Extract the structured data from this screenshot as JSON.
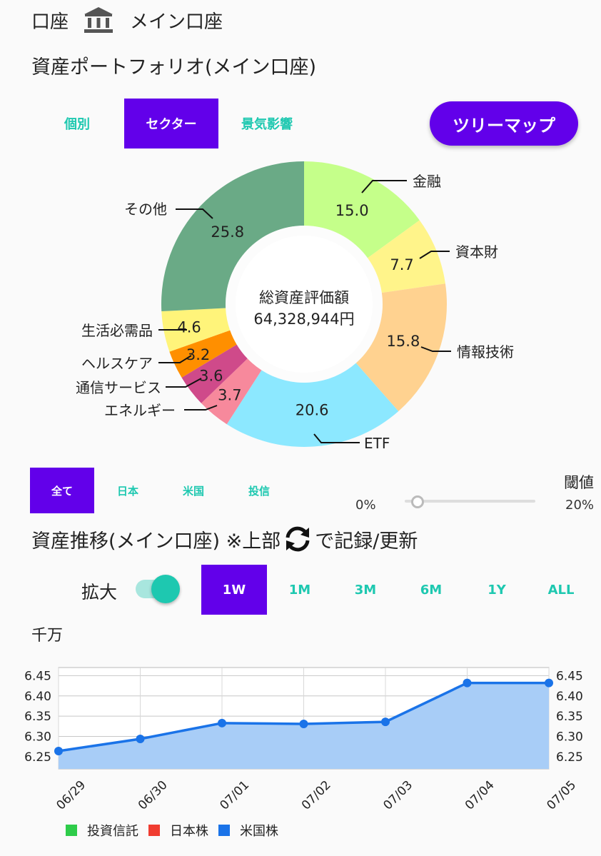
{
  "header": {
    "account_label": "口座",
    "account_name": "メイン口座",
    "icon": "bank-icon"
  },
  "portfolio": {
    "title": "資産ポートフォリオ(メイン口座)",
    "tabs": [
      {
        "label": "個別",
        "active": false
      },
      {
        "label": "セクター",
        "active": true
      },
      {
        "label": "景気影響",
        "active": false
      }
    ],
    "treemap_button": "ツリーマップ",
    "center_label": "総資産評価額",
    "center_value": "64,328,944円"
  },
  "chart_data": [
    {
      "type": "pie",
      "donut": true,
      "slices": [
        {
          "label": "金融",
          "value": 15.0,
          "color": "#c5ff8a"
        },
        {
          "label": "資本財",
          "value": 7.7,
          "color": "#fff48a"
        },
        {
          "label": "情報技術",
          "value": 15.8,
          "color": "#ffd290"
        },
        {
          "label": "ETF",
          "value": 20.6,
          "color": "#8ce8ff"
        },
        {
          "label": "エネルギー",
          "value": 3.7,
          "color": "#f7899c"
        },
        {
          "label": "通信サービス",
          "value": 3.6,
          "color": "#cf4a8a"
        },
        {
          "label": "ヘルスケア",
          "value": 3.2,
          "color": "#ff8f00"
        },
        {
          "label": "生活必需品",
          "value": 4.6,
          "color": "#fff47a"
        },
        {
          "label": "その他",
          "value": 25.8,
          "color": "#6aaa86"
        }
      ]
    },
    {
      "type": "area",
      "categories": [
        "06/29",
        "06/30",
        "07/01",
        "07/02",
        "07/03",
        "07/04",
        "07/05"
      ],
      "series": [
        {
          "values": [
            6.264,
            6.294,
            6.333,
            6.331,
            6.336,
            6.432,
            6.432
          ],
          "color": "#1a73e8",
          "fill": "#a8cdf7"
        }
      ],
      "yticks": [
        "6.45",
        "6.40",
        "6.35",
        "6.30",
        "6.25"
      ],
      "ylim": [
        6.22,
        6.47
      ],
      "grid": true
    }
  ],
  "filter": {
    "tabs": [
      {
        "label": "全て",
        "active": true
      },
      {
        "label": "日本",
        "active": false
      },
      {
        "label": "米国",
        "active": false
      },
      {
        "label": "投信",
        "active": false
      }
    ],
    "threshold_label": "閾値",
    "slider_min": "0%",
    "slider_max": "20%",
    "slider_value": 0
  },
  "history": {
    "title_a": "資産推移(メイン口座) ※上部",
    "title_b": "で記録/更新",
    "refresh_icon": "refresh-icon",
    "zoom_label": "拡大",
    "zoom_on": true,
    "ranges": [
      {
        "label": "1W",
        "active": true
      },
      {
        "label": "1M",
        "active": false
      },
      {
        "label": "3M",
        "active": false
      },
      {
        "label": "6M",
        "active": false
      },
      {
        "label": "1Y",
        "active": false
      },
      {
        "label": "ALL",
        "active": false
      }
    ],
    "unit": "千万",
    "legend": [
      {
        "label": "投資信託",
        "color": "#2ecc4a"
      },
      {
        "label": "日本株",
        "color": "#f03c30"
      },
      {
        "label": "米国株",
        "color": "#1a73e8"
      }
    ]
  }
}
